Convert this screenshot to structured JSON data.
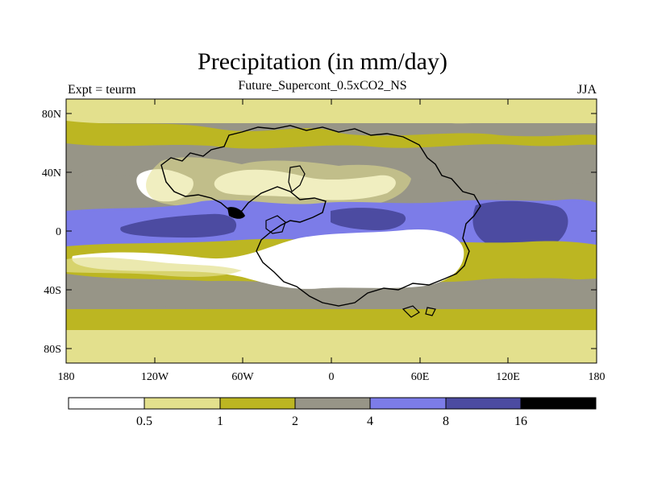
{
  "title": "Precipitation (in mm/day)",
  "subtitle": "Future_Supercont_0.5xCO2_NS",
  "left_string": "Expt = teurm",
  "right_string": "JJA",
  "colors": {
    "c0": "#ffffff",
    "c1": "#e3e08d",
    "c2": "#bcb622",
    "c3": "#979587",
    "c4": "#7c7ce8",
    "c5": "#4c4ba1",
    "c6": "#000000",
    "coast": "#000000"
  },
  "map": {
    "lat_ticks": [
      "80N",
      "40N",
      "0",
      "40S",
      "80S"
    ],
    "lon_ticks": [
      "180",
      "120W",
      "60W",
      "0",
      "60E",
      "120E",
      "180"
    ]
  },
  "colorbar": {
    "unit": "mm/day",
    "levels": [
      "0.5",
      "1",
      "2",
      "4",
      "8",
      "16"
    ],
    "bins": [
      {
        "color": "#ffffff"
      },
      {
        "color": "#e3e08d"
      },
      {
        "color": "#bcb622"
      },
      {
        "color": "#979587"
      },
      {
        "color": "#7c7ce8"
      },
      {
        "color": "#4c4ba1"
      },
      {
        "color": "#000000"
      }
    ]
  }
}
